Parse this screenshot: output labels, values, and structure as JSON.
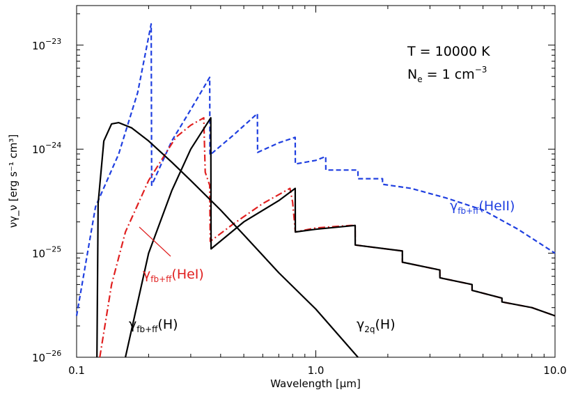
{
  "chart_data": {
    "type": "line",
    "title": "",
    "xlabel": "Wavelength [μm]",
    "ylabel": "νγ_ν [erg s⁻¹ cm³]",
    "xscale": "log",
    "yscale": "log",
    "xlim": [
      0.1,
      10.0
    ],
    "ylim": [
      1e-26,
      2.4e-23
    ],
    "x_ticks": [
      {
        "value": 0.1,
        "label": "0.1"
      },
      {
        "value": 1.0,
        "label": "1.0"
      },
      {
        "value": 10.0,
        "label": "10.0"
      }
    ],
    "y_ticks": [
      {
        "value": 1e-26,
        "base": "10",
        "exp": "−26"
      },
      {
        "value": 1e-25,
        "base": "10",
        "exp": "−25"
      },
      {
        "value": 1e-24,
        "base": "10",
        "exp": "−24"
      },
      {
        "value": 1e-23,
        "base": "10",
        "exp": "−23"
      }
    ],
    "conditions": {
      "temp_prefix": "T = 10000 K",
      "dens_prefix": "N",
      "dens_sub": "e",
      "dens_mid": " = 1 cm",
      "dens_sup": "−3"
    },
    "series": [
      {
        "key": "hii",
        "color": "#1f3fe0",
        "style": "dashed",
        "points": [
          [
            0.1,
            2.5e-26
          ],
          [
            0.12,
            2.8e-25
          ],
          [
            0.15,
            9e-25
          ],
          [
            0.18,
            3.5e-24
          ],
          [
            0.205,
            1.6e-23
          ],
          [
            0.206,
            4.5e-25
          ],
          [
            0.25,
            1.2e-24
          ],
          [
            0.3,
            2.4e-24
          ],
          [
            0.36,
            4.9e-24
          ],
          [
            0.361,
            8.8e-25
          ],
          [
            0.45,
            1.35e-24
          ],
          [
            0.57,
            2.2e-24
          ],
          [
            0.571,
            9.3e-25
          ],
          [
            0.7,
            1.15e-24
          ],
          [
            0.82,
            1.3e-24
          ],
          [
            0.821,
            7.2e-25
          ],
          [
            1.0,
            7.8e-25
          ],
          [
            1.1,
            8.5e-25
          ],
          [
            1.101,
            6.3e-25
          ],
          [
            1.5,
            6.3e-25
          ],
          [
            1.501,
            5.2e-25
          ],
          [
            1.9,
            5.2e-25
          ],
          [
            1.901,
            4.6e-25
          ],
          [
            2.5,
            4.2e-25
          ],
          [
            3.5,
            3.4e-25
          ],
          [
            5.0,
            2.6e-25
          ],
          [
            7.0,
            1.7e-25
          ],
          [
            10.0,
            1e-25
          ]
        ]
      },
      {
        "key": "hei",
        "color": "#e02020",
        "style": "dashdot",
        "points": [
          [
            0.125,
            1e-26
          ],
          [
            0.14,
            5e-26
          ],
          [
            0.16,
            1.6e-25
          ],
          [
            0.2,
            5e-25
          ],
          [
            0.26,
            1.3e-24
          ],
          [
            0.3,
            1.7e-24
          ],
          [
            0.34,
            2e-24
          ],
          [
            0.345,
            6e-25
          ],
          [
            0.36,
            4.5e-25
          ],
          [
            0.362,
            1.3e-25
          ],
          [
            0.45,
            1.9e-25
          ],
          [
            0.6,
            3e-25
          ],
          [
            0.78,
            4.2e-25
          ],
          [
            0.8,
            3.1e-25
          ],
          [
            0.821,
            1.6e-25
          ],
          [
            1.0,
            1.75e-25
          ],
          [
            1.4,
            1.85e-25
          ],
          [
            1.46,
            1.85e-25
          ],
          [
            1.461,
            1.2e-25
          ],
          [
            2.3,
            1.05e-25
          ],
          [
            2.301,
            8.2e-26
          ],
          [
            3.3,
            6.9e-26
          ],
          [
            3.301,
            5.8e-26
          ],
          [
            4.5,
            5e-26
          ],
          [
            4.501,
            4.4e-26
          ],
          [
            6.0,
            3.7e-26
          ],
          [
            6.001,
            3.4e-26
          ],
          [
            8.0,
            3e-26
          ],
          [
            10.0,
            2.5e-26
          ]
        ]
      },
      {
        "key": "h_fb",
        "color": "#000000",
        "style": "solid",
        "points": [
          [
            0.16,
            1e-26
          ],
          [
            0.2,
            1e-25
          ],
          [
            0.25,
            4e-25
          ],
          [
            0.3,
            1e-24
          ],
          [
            0.364,
            2e-24
          ],
          [
            0.365,
            1.1e-25
          ],
          [
            0.5,
            2e-25
          ],
          [
            0.7,
            3.2e-25
          ],
          [
            0.82,
            4.2e-25
          ],
          [
            0.821,
            1.6e-25
          ],
          [
            1.0,
            1.7e-25
          ],
          [
            1.46,
            1.85e-25
          ],
          [
            1.461,
            1.2e-25
          ],
          [
            2.3,
            1.05e-25
          ],
          [
            2.301,
            8.2e-26
          ],
          [
            3.3,
            6.9e-26
          ],
          [
            3.301,
            5.8e-26
          ],
          [
            4.5,
            5e-26
          ],
          [
            4.501,
            4.4e-26
          ],
          [
            6.0,
            3.7e-26
          ],
          [
            6.001,
            3.4e-26
          ],
          [
            8.0,
            3e-26
          ],
          [
            10.0,
            2.5e-26
          ]
        ]
      },
      {
        "key": "h_2q",
        "color": "#000000",
        "style": "solid",
        "points": [
          [
            0.1216,
            1e-26
          ],
          [
            0.123,
            3e-25
          ],
          [
            0.13,
            1.2e-24
          ],
          [
            0.14,
            1.75e-24
          ],
          [
            0.15,
            1.8e-24
          ],
          [
            0.17,
            1.6e-24
          ],
          [
            0.2,
            1.2e-24
          ],
          [
            0.25,
            7.5e-25
          ],
          [
            0.3,
            5e-25
          ],
          [
            0.4,
            2.6e-25
          ],
          [
            0.5,
            1.5e-25
          ],
          [
            0.7,
            6.5e-26
          ],
          [
            1.0,
            2.9e-26
          ],
          [
            1.5,
            1e-26
          ]
        ]
      }
    ],
    "labels": [
      {
        "key": "hii",
        "base": "γ",
        "sub": "fb+ff",
        "tail": "(HeII)",
        "color": "#1f3fe0"
      },
      {
        "key": "hei",
        "base": "γ",
        "sub": "fb+ff",
        "tail": "(HeI)",
        "color": "#e02020"
      },
      {
        "key": "h_fb",
        "base": "γ",
        "sub": "fb+ff",
        "tail": "(H)",
        "color": "#000000"
      },
      {
        "key": "h_2q",
        "base": "γ",
        "sub": "2q",
        "tail": "(H)",
        "color": "#000000"
      }
    ]
  }
}
